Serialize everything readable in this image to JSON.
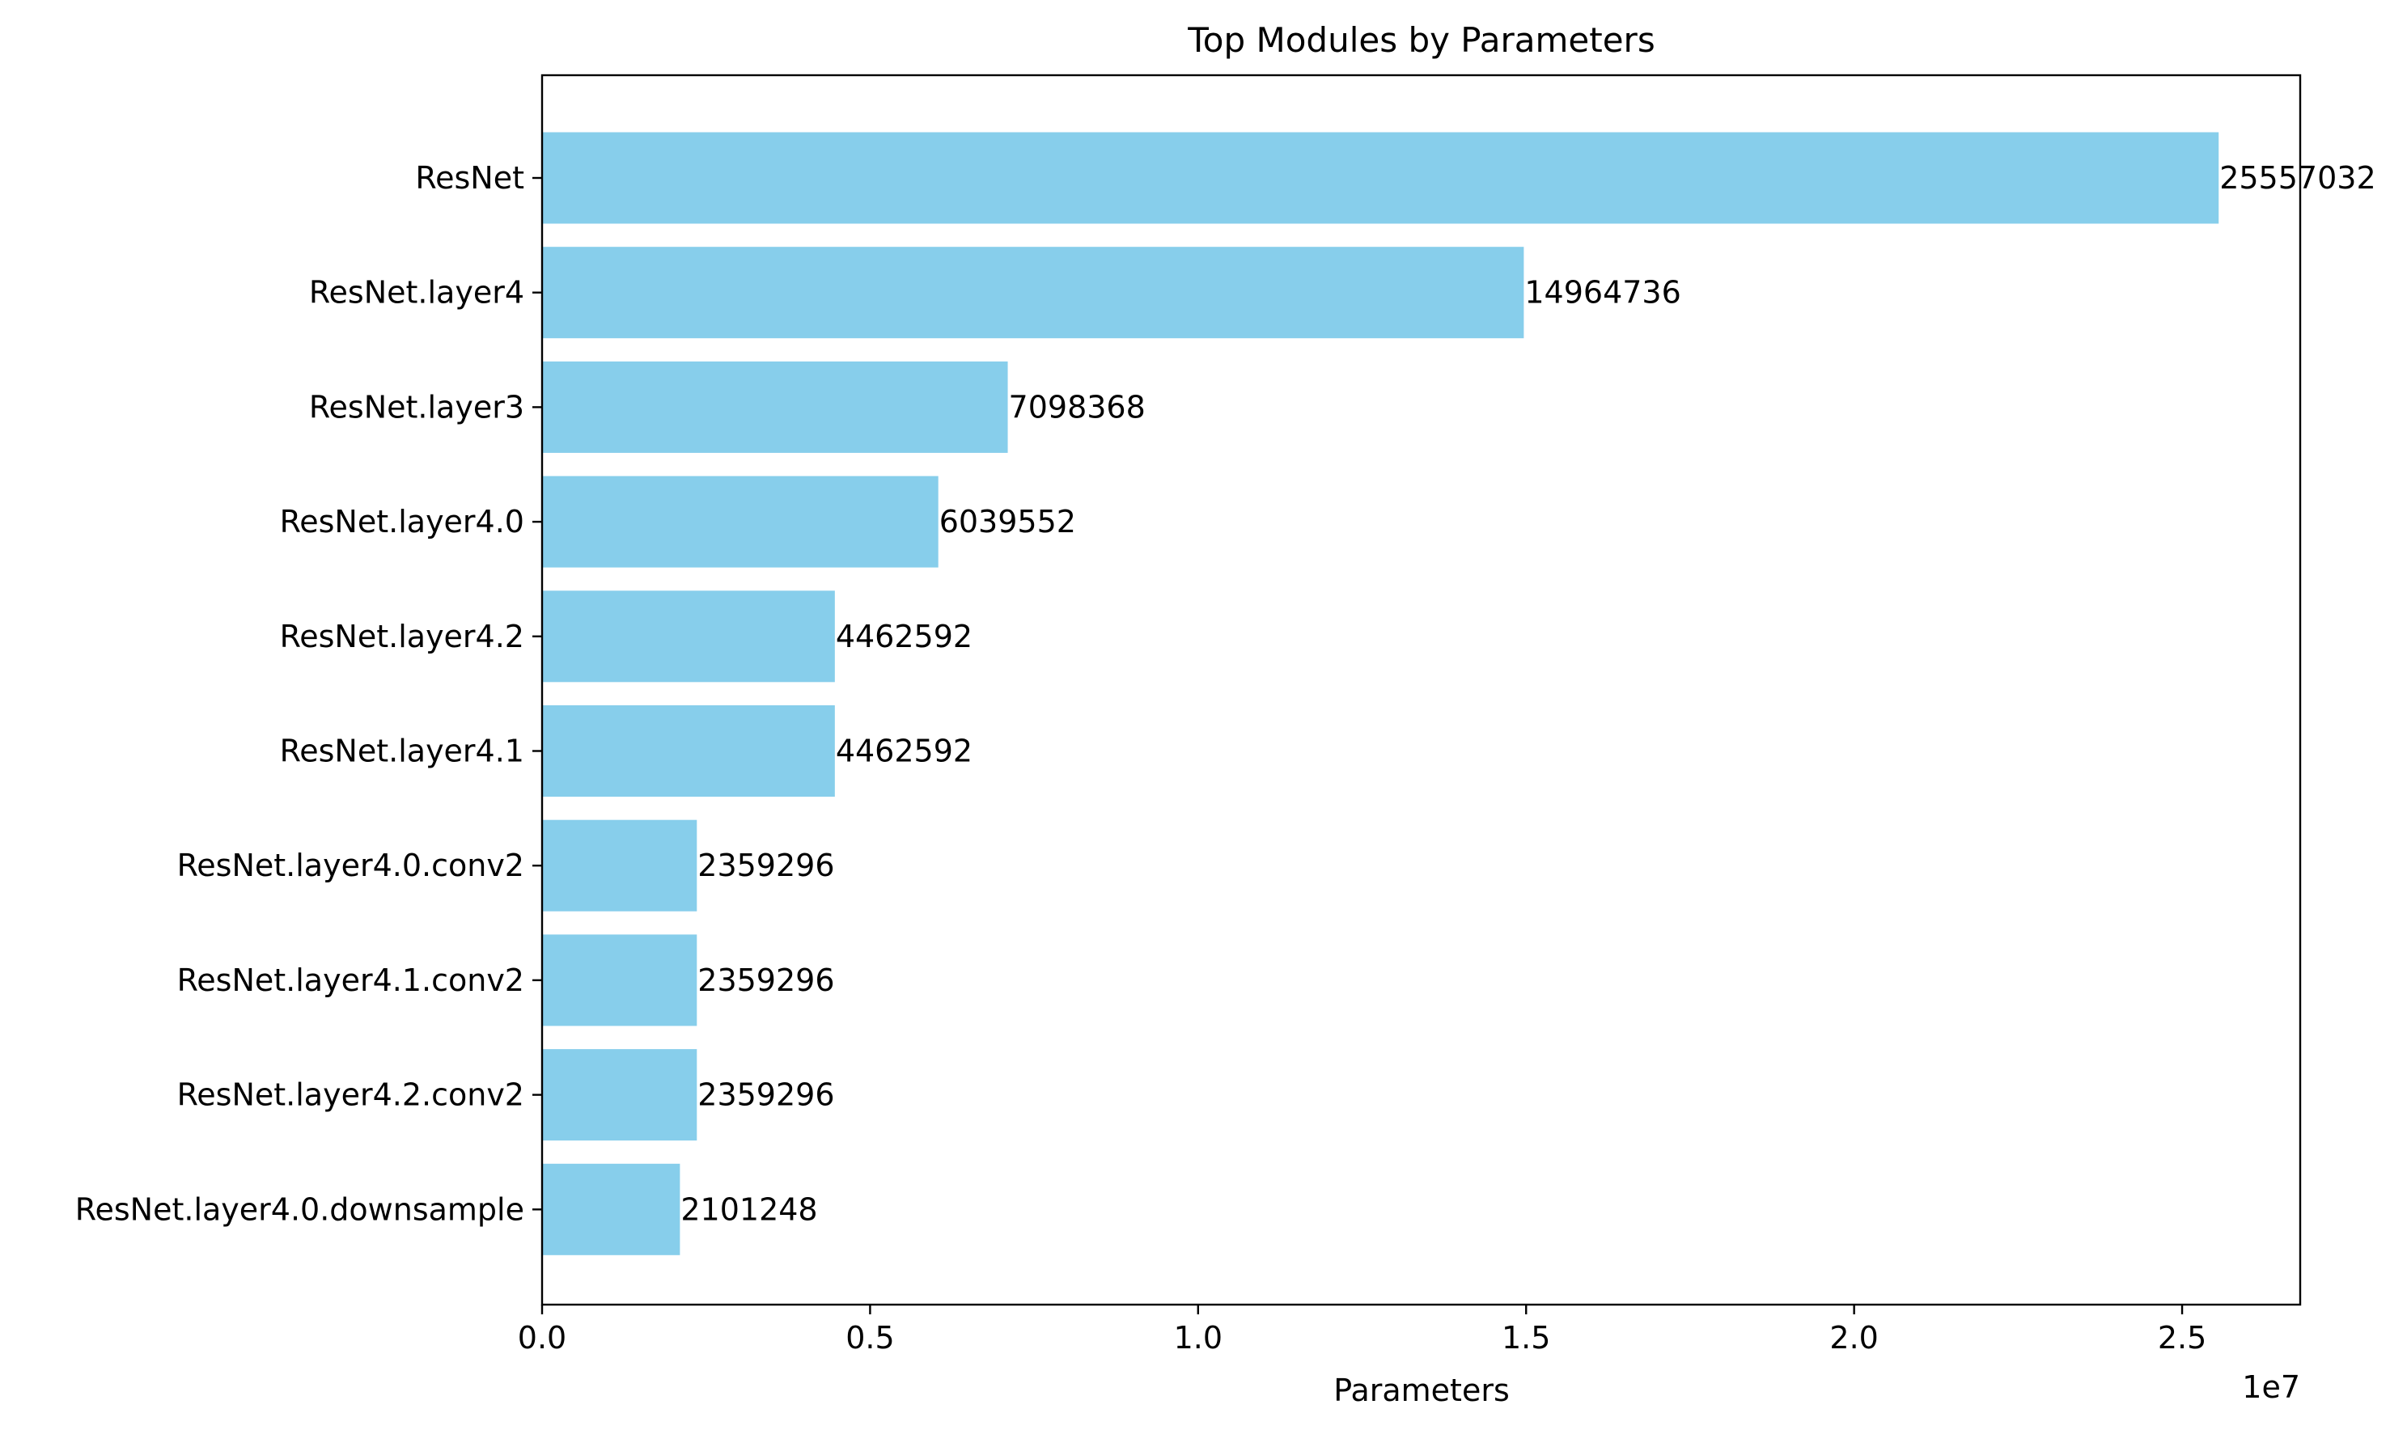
{
  "chart_data": {
    "type": "bar",
    "orientation": "horizontal",
    "title": "Top Modules by Parameters",
    "xlabel": "Parameters",
    "ylabel": "",
    "x_scale_label": "1e7",
    "xlim": [
      0,
      26800000
    ],
    "x_ticks": [
      0,
      5000000,
      10000000,
      15000000,
      20000000,
      25000000
    ],
    "x_tick_labels": [
      "0.0",
      "0.5",
      "1.0",
      "1.5",
      "2.0",
      "2.5"
    ],
    "categories": [
      "ResNet",
      "ResNet.layer4",
      "ResNet.layer3",
      "ResNet.layer4.0",
      "ResNet.layer4.2",
      "ResNet.layer4.1",
      "ResNet.layer4.0.conv2",
      "ResNet.layer4.1.conv2",
      "ResNet.layer4.2.conv2",
      "ResNet.layer4.0.downsample"
    ],
    "values": [
      25557032,
      14964736,
      7098368,
      6039552,
      4462592,
      4462592,
      2359296,
      2359296,
      2359296,
      2101248
    ],
    "value_labels": [
      "25557032",
      "14964736",
      "7098368",
      "6039552",
      "4462592",
      "4462592",
      "2359296",
      "2359296",
      "2359296",
      "2101248"
    ],
    "bar_color": "#87ceeb",
    "grid": false,
    "legend": "none"
  }
}
